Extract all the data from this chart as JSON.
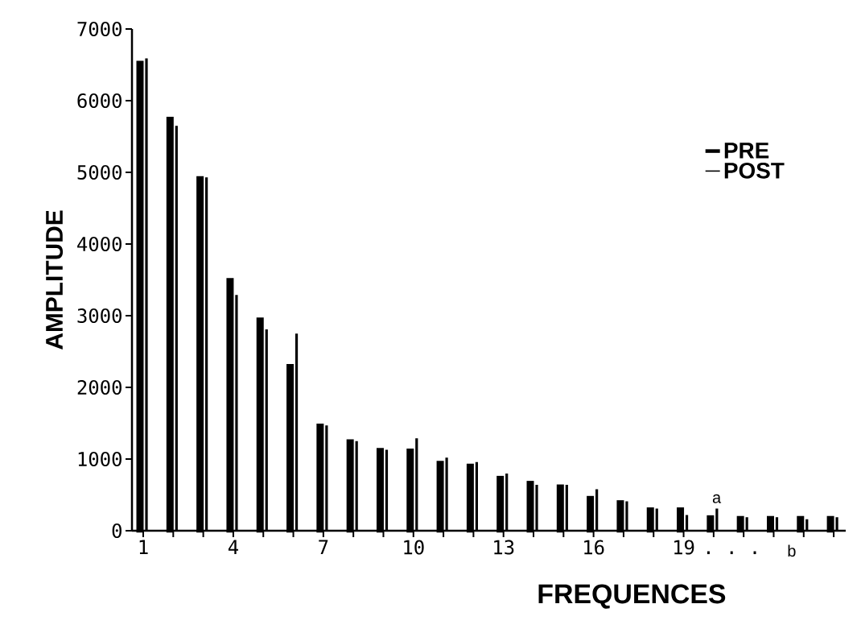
{
  "chart_data": {
    "type": "bar",
    "xlabel": "FREQUENCES",
    "ylabel": "AMPLITUDE",
    "categories": [
      "1",
      null,
      null,
      "4",
      null,
      null,
      "7",
      null,
      null,
      "10",
      null,
      null,
      "13",
      null,
      null,
      "16",
      null,
      null,
      "19",
      null,
      null,
      null,
      null,
      null
    ],
    "series": [
      {
        "name": "PRE",
        "color": "#000000",
        "values": [
          6530,
          5750,
          4920,
          3500,
          2950,
          2300,
          1470,
          1250,
          1130,
          1120,
          950,
          910,
          740,
          670,
          620,
          460,
          400,
          300,
          300,
          190,
          180,
          180,
          180,
          180
        ]
      },
      {
        "name": "POST",
        "color": "#000000",
        "values": [
          6580,
          5640,
          4920,
          3280,
          2800,
          2740,
          1460,
          1240,
          1120,
          1280,
          1010,
          950,
          790,
          630,
          630,
          570,
          400,
          300,
          210,
          300,
          180,
          180,
          150,
          180
        ]
      }
    ],
    "ylim": [
      0,
      7000
    ],
    "yticks": [
      0,
      1000,
      2000,
      3000,
      4000,
      5000,
      6000,
      7000
    ],
    "legend": "top right",
    "grid": false,
    "annotations": [
      "· · ·",
      "a",
      "b"
    ]
  }
}
